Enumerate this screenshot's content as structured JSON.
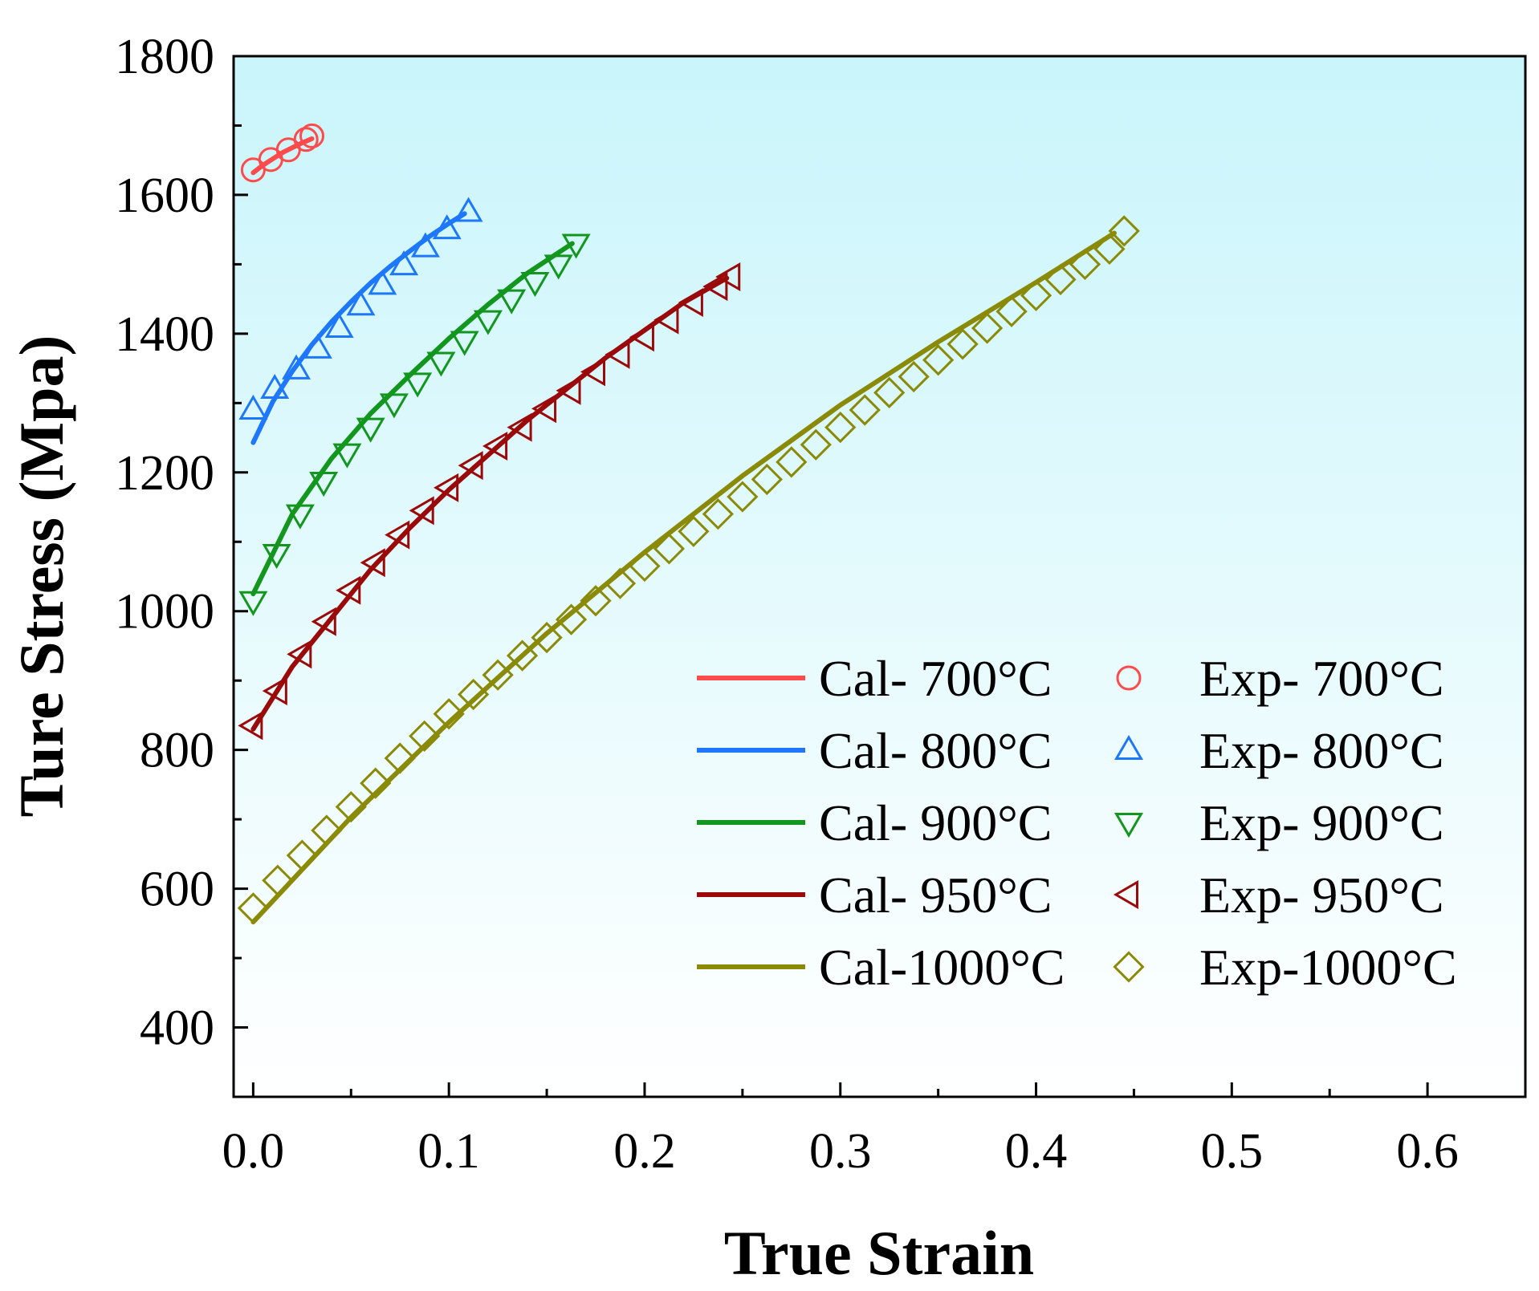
{
  "chart_data": {
    "type": "line",
    "title": "",
    "xlabel": "True  Strain",
    "ylabel": "Ture Stress (Mpa)",
    "xlim": [
      -0.01,
      0.65
    ],
    "ylim": [
      300,
      1800
    ],
    "xticks": [
      0.0,
      0.1,
      0.2,
      0.3,
      0.4,
      0.5,
      0.6
    ],
    "xtick_labels": [
      "0.0",
      "0.1",
      "0.2",
      "0.3",
      "0.4",
      "0.5",
      "0.6"
    ],
    "yticks": [
      400,
      600,
      800,
      1000,
      1200,
      1400,
      1600,
      1800
    ],
    "ytick_labels": [
      "400",
      "600",
      "800",
      "1000",
      "1200",
      "1400",
      "1600",
      "1800"
    ],
    "background_gradient": [
      "#c9f5fb",
      "#ffffff"
    ],
    "legend_position": "bottom-right",
    "series": [
      {
        "name": "Cal-  700°C",
        "exp_name": "Exp-  700°C",
        "color": "#ff4b4b",
        "marker": "circle",
        "cal": {
          "x": [
            0.0,
            0.005,
            0.01,
            0.015,
            0.02,
            0.025,
            0.03
          ],
          "y": [
            1632,
            1643,
            1652,
            1661,
            1668,
            1675,
            1681
          ]
        },
        "exp": {
          "x": [
            0.0,
            0.009,
            0.018,
            0.027,
            0.03
          ],
          "y": [
            1636,
            1651,
            1665,
            1680,
            1685
          ]
        }
      },
      {
        "name": "Cal-  800°C",
        "exp_name": "Exp-  800°C",
        "color": "#1e78ff",
        "marker": "triangle-up",
        "cal": {
          "x": [
            0.0,
            0.01,
            0.02,
            0.03,
            0.04,
            0.05,
            0.06,
            0.07,
            0.08,
            0.09,
            0.1,
            0.108
          ],
          "y": [
            1243,
            1302,
            1346,
            1384,
            1417,
            1446,
            1473,
            1497,
            1519,
            1540,
            1559,
            1573
          ]
        },
        "exp": {
          "x": [
            0.0,
            0.011,
            0.022,
            0.033,
            0.044,
            0.055,
            0.066,
            0.077,
            0.088,
            0.099,
            0.11
          ],
          "y": [
            1290,
            1320,
            1348,
            1378,
            1408,
            1440,
            1470,
            1498,
            1524,
            1550,
            1575
          ]
        }
      },
      {
        "name": "Cal-  900°C",
        "exp_name": "Exp-  900°C",
        "color": "#12961e",
        "marker": "triangle-down",
        "cal": {
          "x": [
            0.0,
            0.02,
            0.04,
            0.06,
            0.08,
            0.1,
            0.12,
            0.14,
            0.163
          ],
          "y": [
            1025,
            1140,
            1220,
            1285,
            1340,
            1393,
            1442,
            1487,
            1530
          ]
        },
        "exp": {
          "x": [
            0.0,
            0.012,
            0.024,
            0.036,
            0.048,
            0.06,
            0.072,
            0.084,
            0.096,
            0.108,
            0.12,
            0.132,
            0.144,
            0.156,
            0.165
          ],
          "y": [
            1015,
            1083,
            1140,
            1187,
            1228,
            1265,
            1300,
            1330,
            1360,
            1390,
            1420,
            1450,
            1475,
            1500,
            1530
          ]
        }
      },
      {
        "name": "Cal-  950°C",
        "exp_name": "Exp-  950°C",
        "color": "#9b0a0a",
        "marker": "triangle-left",
        "cal": {
          "x": [
            0.0,
            0.02,
            0.04,
            0.06,
            0.08,
            0.1,
            0.12,
            0.14,
            0.16,
            0.18,
            0.2,
            0.22,
            0.242
          ],
          "y": [
            830,
            920,
            990,
            1060,
            1120,
            1175,
            1225,
            1275,
            1320,
            1365,
            1405,
            1445,
            1480
          ]
        },
        "exp": {
          "x": [
            0.0,
            0.0125,
            0.025,
            0.0375,
            0.05,
            0.0625,
            0.075,
            0.0875,
            0.1,
            0.1125,
            0.125,
            0.1375,
            0.15,
            0.1625,
            0.175,
            0.1875,
            0.2,
            0.2125,
            0.225,
            0.2375,
            0.244
          ],
          "y": [
            835,
            885,
            938,
            985,
            1030,
            1070,
            1110,
            1145,
            1178,
            1210,
            1238,
            1265,
            1292,
            1318,
            1345,
            1370,
            1395,
            1420,
            1445,
            1468,
            1482
          ]
        }
      },
      {
        "name": "Cal-1000°C",
        "exp_name": "Exp-1000°C",
        "color": "#8a8a06",
        "marker": "diamond",
        "cal": {
          "x": [
            0.0,
            0.05,
            0.1,
            0.15,
            0.2,
            0.25,
            0.3,
            0.35,
            0.4,
            0.44
          ],
          "y": [
            552,
            703,
            840,
            968,
            1085,
            1195,
            1297,
            1388,
            1474,
            1545
          ]
        },
        "exp": {
          "x": [
            0.0,
            0.0125,
            0.025,
            0.0375,
            0.05,
            0.0625,
            0.075,
            0.0875,
            0.1,
            0.1125,
            0.125,
            0.1375,
            0.15,
            0.1625,
            0.175,
            0.1875,
            0.2,
            0.2125,
            0.225,
            0.2375,
            0.25,
            0.2625,
            0.275,
            0.2875,
            0.3,
            0.3125,
            0.325,
            0.3375,
            0.35,
            0.3625,
            0.375,
            0.3875,
            0.4,
            0.4125,
            0.425,
            0.4375,
            0.445
          ],
          "y": [
            572,
            612,
            648,
            684,
            718,
            752,
            788,
            820,
            852,
            880,
            908,
            936,
            962,
            988,
            1015,
            1040,
            1065,
            1090,
            1115,
            1140,
            1165,
            1190,
            1215,
            1240,
            1265,
            1290,
            1315,
            1338,
            1362,
            1385,
            1408,
            1432,
            1455,
            1478,
            1500,
            1522,
            1548
          ]
        }
      }
    ]
  }
}
